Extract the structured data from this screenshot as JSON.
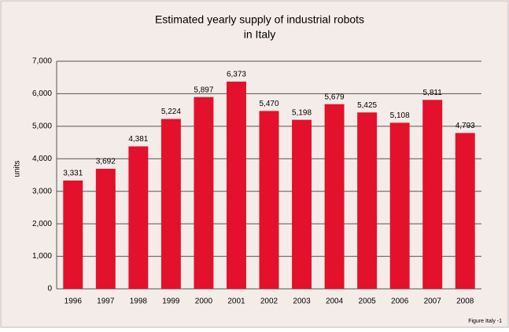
{
  "chart_data": {
    "type": "bar",
    "title": [
      "Estimated yearly supply of industrial robots",
      "in Italy"
    ],
    "y_label": "units",
    "footnote": "Figure Italy -1",
    "categories": [
      "1996",
      "1997",
      "1998",
      "1999",
      "2000",
      "2001",
      "2002",
      "2003",
      "2004",
      "2005",
      "2006",
      "2007",
      "2008"
    ],
    "values": [
      3331,
      3692,
      4381,
      5224,
      5897,
      6373,
      5470,
      5198,
      5679,
      5425,
      5108,
      5811,
      4793
    ],
    "value_labels": [
      "3,331",
      "3,692",
      "4,381",
      "5,224",
      "5,897",
      "6,373",
      "5,470",
      "5,198",
      "5,679",
      "5,425",
      "5,108",
      "5,811",
      "4,793"
    ],
    "color": "#e3112b",
    "ylim": [
      0,
      7000
    ],
    "yticks": [
      0,
      {
        "value": 1000,
        "label": "1,000"
      },
      {
        "value": 2000,
        "label": "2,000"
      },
      {
        "value": 3000,
        "label": "3,000"
      },
      {
        "value": 4000,
        "label": "4,000"
      },
      {
        "value": 5000,
        "label": "5,000"
      },
      {
        "value": 6000,
        "label": "6,000"
      },
      {
        "value": 7000,
        "label": "7,000"
      }
    ],
    "grid": true
  }
}
